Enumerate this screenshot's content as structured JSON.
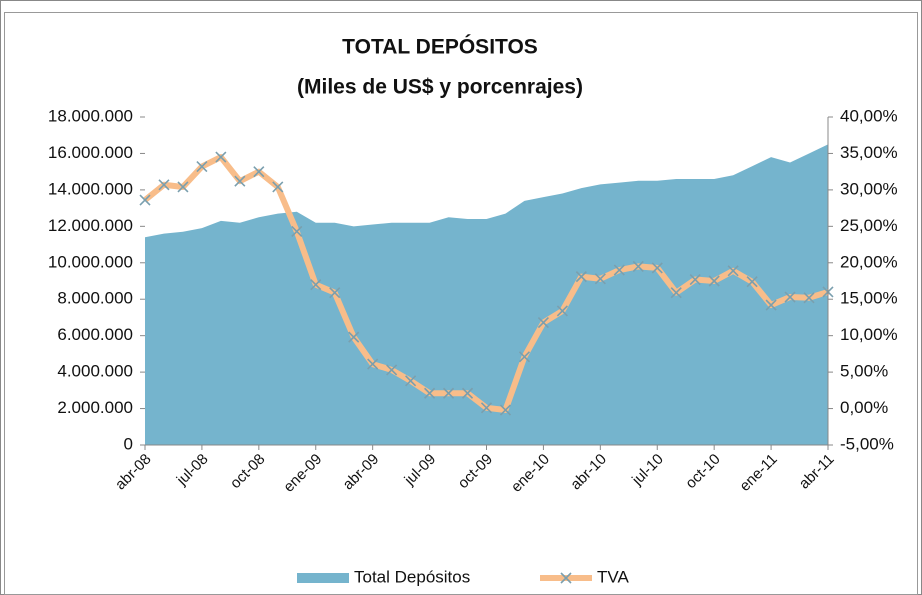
{
  "chart_data": {
    "type": "area-line",
    "title": "TOTAL DEPÓSITOS",
    "subtitle": "(Miles de US$ y porcenrajes)",
    "categories": [
      "abr-08",
      null,
      null,
      "jul-08",
      null,
      null,
      "oct-08",
      null,
      null,
      "ene-09",
      null,
      null,
      "abr-09",
      null,
      null,
      "jul-09",
      null,
      null,
      "oct-09",
      null,
      null,
      "ene-10",
      null,
      null,
      "abr-10",
      null,
      null,
      "jul-10",
      null,
      null,
      "oct-10",
      null,
      null,
      "ene-11",
      null,
      null,
      "abr-11"
    ],
    "series": [
      {
        "name": "Total Depósitos",
        "color": "#75b4cd",
        "axis": "y",
        "values": [
          11400000,
          11600000,
          11700000,
          11900000,
          12300000,
          12200000,
          12500000,
          12700000,
          12800000,
          12200000,
          12200000,
          12000000,
          12100000,
          12200000,
          12200000,
          12200000,
          12500000,
          12400000,
          12400000,
          12700000,
          13400000,
          13600000,
          13800000,
          14100000,
          14300000,
          14400000,
          14500000,
          14500000,
          14600000,
          14600000,
          14600000,
          14800000,
          15300000,
          15800000,
          15500000,
          16000000,
          16500000
        ]
      },
      {
        "name": "TVA",
        "color": "#f8bd8a",
        "marker_color": "#7a9fae",
        "axis": "y2",
        "values": [
          28.6,
          30.7,
          30.4,
          33.2,
          34.5,
          31.2,
          32.5,
          30.4,
          24.3,
          17.0,
          15.9,
          9.8,
          6.1,
          5.3,
          3.8,
          2.1,
          2.1,
          2.1,
          0.1,
          -0.2,
          7.1,
          11.8,
          13.4,
          18.1,
          17.8,
          19.0,
          19.5,
          19.3,
          15.9,
          17.7,
          17.5,
          18.9,
          17.4,
          14.2,
          15.3,
          15.2,
          16.0
        ]
      }
    ],
    "ylim": [
      0,
      18000000
    ],
    "yticks": [
      0,
      {
        "value": 2000000,
        "label": "2.000.000"
      },
      {
        "value": 4000000,
        "label": "4.000.000"
      },
      {
        "value": 6000000,
        "label": "6.000.000"
      },
      {
        "value": 8000000,
        "label": "8.000.000"
      },
      {
        "value": 10000000,
        "label": "10.000.000"
      },
      {
        "value": 12000000,
        "label": "12.000.000"
      },
      {
        "value": 14000000,
        "label": "14.000.000"
      },
      {
        "value": 16000000,
        "label": "16.000.000"
      },
      {
        "value": 18000000,
        "label": "18.000.000"
      }
    ],
    "y2lim": [
      -5,
      40
    ],
    "y2ticks": [
      {
        "value": -5,
        "label": "-5,00%"
      },
      {
        "value": 0,
        "label": "0,00%"
      },
      {
        "value": 5,
        "label": "5,00%"
      },
      {
        "value": 10,
        "label": "10,00%"
      },
      {
        "value": 15,
        "label": "15,00%"
      },
      {
        "value": 20,
        "label": "20,00%"
      },
      {
        "value": 25,
        "label": "25,00%"
      },
      {
        "value": 30,
        "label": "30,00%"
      },
      {
        "value": 35,
        "label": "35,00%"
      },
      {
        "value": 40,
        "label": "40,00%"
      }
    ],
    "legend": "bottom"
  }
}
